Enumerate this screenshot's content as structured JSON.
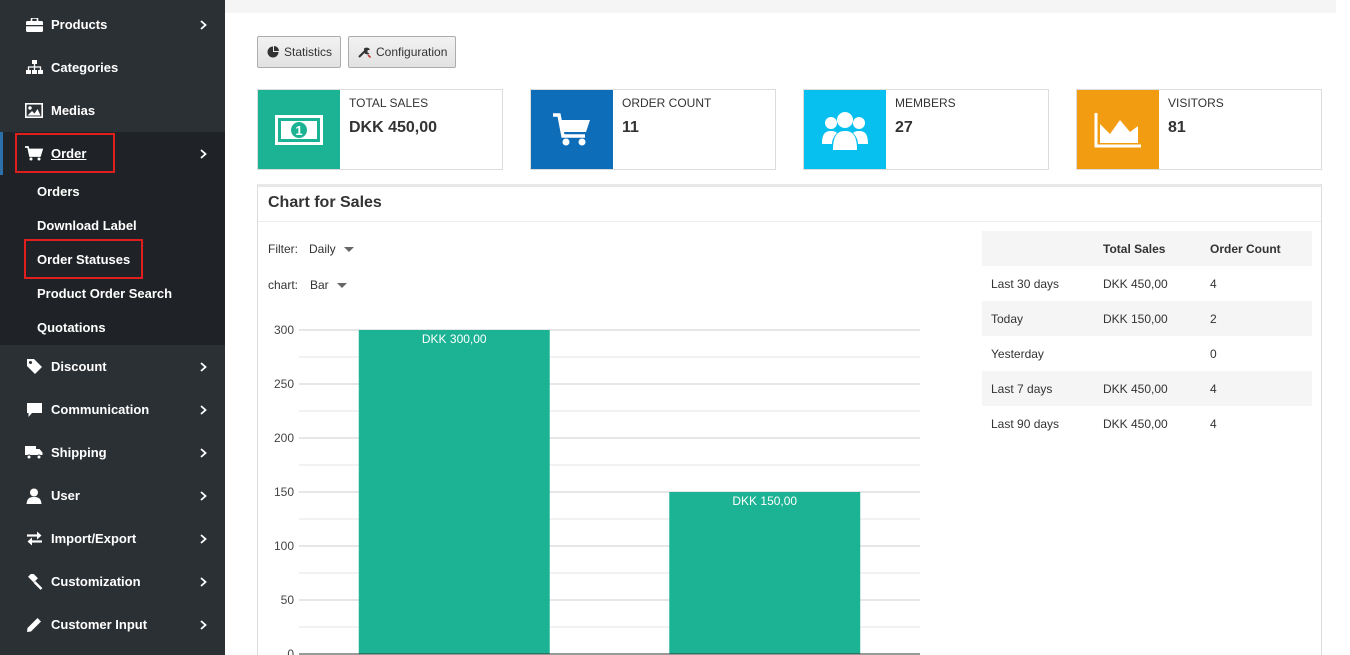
{
  "sidebar": {
    "items": [
      {
        "label": "Products",
        "icon": "briefcase-icon",
        "chevron": true
      },
      {
        "label": "Categories",
        "icon": "sitemap-icon",
        "chevron": false
      },
      {
        "label": "Medias",
        "icon": "image-icon",
        "chevron": false
      },
      {
        "label": "Order",
        "icon": "cart-icon",
        "chevron": true,
        "active": true
      },
      {
        "label": "Discount",
        "icon": "tag-icon",
        "chevron": true
      },
      {
        "label": "Communication",
        "icon": "comment-icon",
        "chevron": true
      },
      {
        "label": "Shipping",
        "icon": "truck-icon",
        "chevron": true
      },
      {
        "label": "User",
        "icon": "user-icon",
        "chevron": true
      },
      {
        "label": "Import/Export",
        "icon": "exchange-icon",
        "chevron": true
      },
      {
        "label": "Customization",
        "icon": "gavel-icon",
        "chevron": true
      },
      {
        "label": "Customer Input",
        "icon": "pencil-icon",
        "chevron": true
      }
    ],
    "order_submenu": [
      "Orders",
      "Download Label",
      "Order Statuses",
      "Product Order Search",
      "Quotations"
    ]
  },
  "toolbar": {
    "statistics_label": "Statistics",
    "configuration_label": "Configuration"
  },
  "cards": [
    {
      "caption": "TOTAL SALES",
      "value": "DKK 450,00",
      "color": "#1bb394",
      "icon": "money-icon"
    },
    {
      "caption": "ORDER COUNT",
      "value": "11",
      "color": "#0d6db8",
      "icon": "cart-icon"
    },
    {
      "caption": "MEMBERS",
      "value": "27",
      "color": "#08c0ef",
      "icon": "users-icon"
    },
    {
      "caption": "VISITORS",
      "value": "81",
      "color": "#f29c12",
      "icon": "area-chart-icon"
    }
  ],
  "panel": {
    "title": "Chart for Sales",
    "filter_label": "Filter:",
    "filter_value": "Daily",
    "chart_label": "chart:",
    "chart_value": "Bar"
  },
  "stats_table": {
    "headers": [
      "",
      "Total Sales",
      "Order Count"
    ],
    "rows": [
      [
        "Last 30 days",
        "DKK 450,00",
        "4"
      ],
      [
        "Today",
        "DKK 150,00",
        "2"
      ],
      [
        "Yesterday",
        "",
        "0"
      ],
      [
        "Last 7 days",
        "DKK 450,00",
        "4"
      ],
      [
        "Last 90 days",
        "DKK 450,00",
        "4"
      ]
    ]
  },
  "chart_data": {
    "type": "bar",
    "categories": [
      "",
      ""
    ],
    "values": [
      300,
      150
    ],
    "data_labels": [
      "DKK 300,00",
      "DKK 150,00"
    ],
    "yticks": [
      0,
      50,
      100,
      150,
      200,
      250,
      300
    ],
    "ylim": [
      0,
      300
    ],
    "bar_color": "#1bb394",
    "grid": true,
    "title": "",
    "xlabel": "",
    "ylabel": ""
  }
}
